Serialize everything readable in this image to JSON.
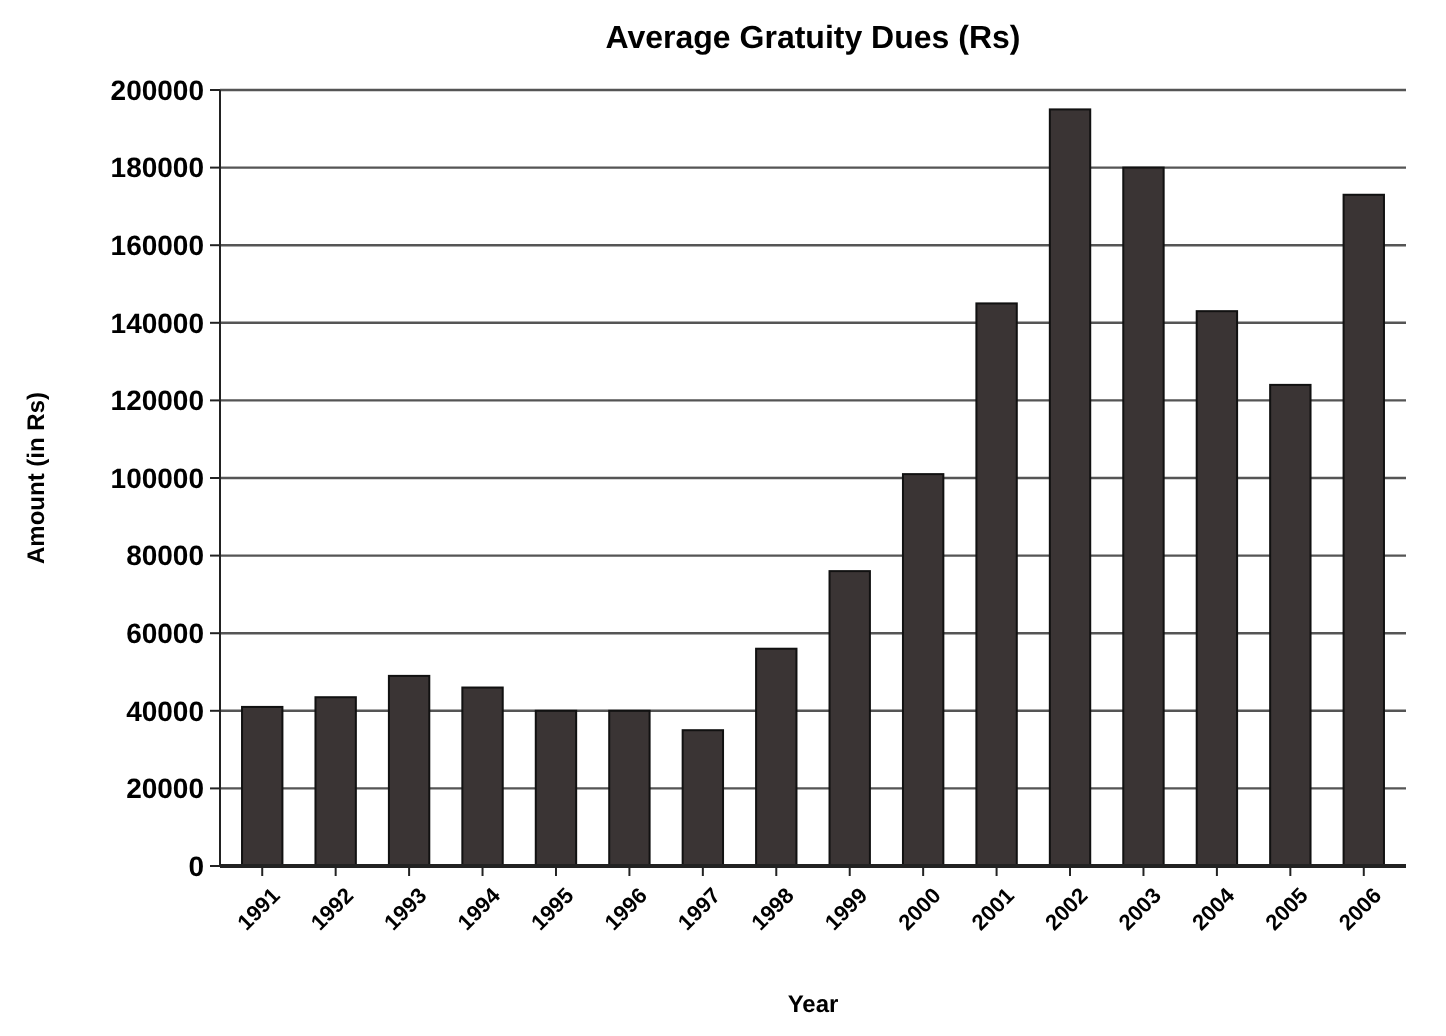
{
  "chart_data": {
    "type": "bar",
    "title": "Average Gratuity Dues (Rs)",
    "xlabel": "Year",
    "ylabel": "Amount (in Rs)",
    "categories": [
      "1991",
      "1992",
      "1993",
      "1994",
      "1995",
      "1996",
      "1997",
      "1998",
      "1999",
      "2000",
      "2001",
      "2002",
      "2003",
      "2004",
      "2005",
      "2006"
    ],
    "values": [
      41000,
      43500,
      49000,
      46000,
      40000,
      40000,
      35000,
      56000,
      76000,
      101000,
      145000,
      195000,
      180000,
      143000,
      124000,
      173000
    ],
    "color": "#3a3434",
    "ylim": [
      0,
      200000
    ],
    "yticks": [
      0,
      20000,
      40000,
      60000,
      80000,
      100000,
      120000,
      140000,
      160000,
      180000,
      200000
    ],
    "grid": "y"
  }
}
